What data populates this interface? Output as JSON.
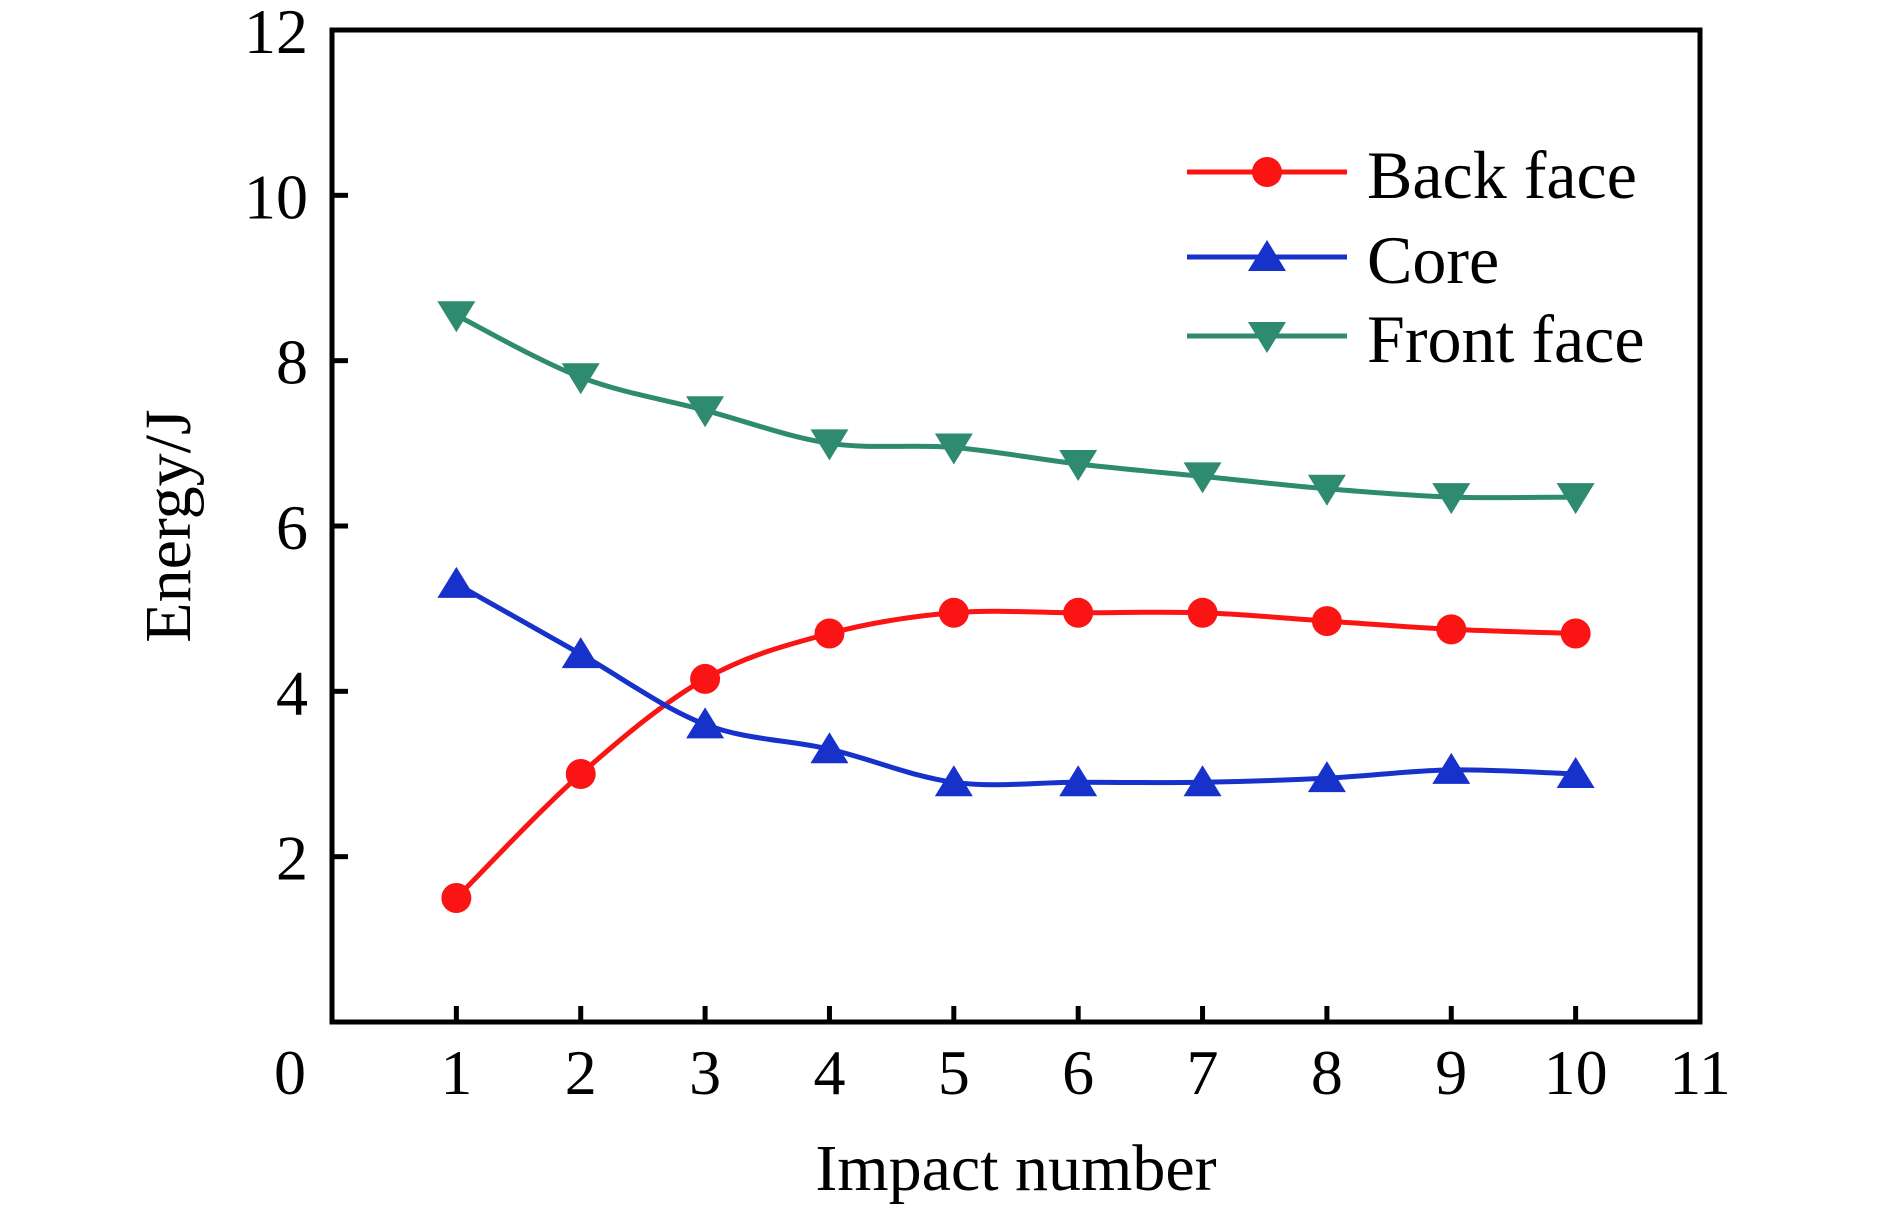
{
  "chart_data": {
    "type": "line",
    "title": "",
    "xlabel": "Impact number",
    "ylabel": "Energy/J",
    "x": [
      1,
      2,
      3,
      4,
      5,
      6,
      7,
      8,
      9,
      10
    ],
    "series": [
      {
        "name": "Back face",
        "color": "#fa1414",
        "marker": "circle",
        "values": [
          1.5,
          3.0,
          4.15,
          4.7,
          4.95,
          4.95,
          4.95,
          4.85,
          4.75,
          4.7
        ]
      },
      {
        "name": "Core",
        "color": "#1732cb",
        "marker": "triangle-up",
        "values": [
          5.3,
          4.45,
          3.6,
          3.3,
          2.9,
          2.9,
          2.9,
          2.95,
          3.05,
          3.0
        ]
      },
      {
        "name": "Front face",
        "color": "#2e8b70",
        "marker": "triangle-down",
        "values": [
          8.55,
          7.8,
          7.4,
          7.0,
          6.95,
          6.75,
          6.6,
          6.45,
          6.35,
          6.35
        ]
      }
    ],
    "xlim": [
      0,
      11
    ],
    "ylim": [
      0,
      12
    ],
    "xticks": [
      0,
      1,
      2,
      3,
      4,
      5,
      6,
      7,
      8,
      9,
      10,
      11
    ],
    "yticks": [
      2,
      4,
      6,
      8,
      10,
      12
    ],
    "grid": false,
    "legend_position": "top-right-inside",
    "curve": "smooth",
    "axis_color": "#000000",
    "background": "#ffffff"
  }
}
